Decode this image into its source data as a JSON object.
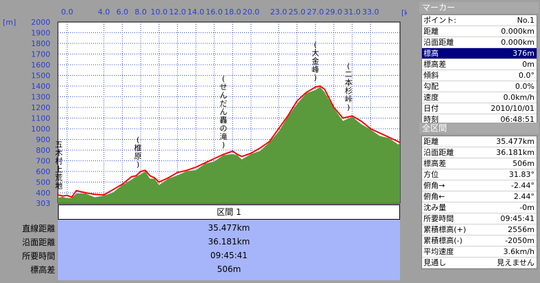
{
  "chart_data": {
    "type": "area",
    "x_unit": "[km]",
    "y_unit": "[m]",
    "xlim": [
      -1.0,
      36.2
    ],
    "ylim": [
      303,
      2000
    ],
    "x_ticks": [
      "0.0",
      "4.0",
      "6.0",
      "8.0",
      "10.0",
      "12.0",
      "14.0",
      "16.0",
      "18.0",
      "20.0",
      "23.0",
      "25.0",
      "27.0",
      "29.0",
      "31.0",
      "33.0"
    ],
    "x_tick_values": [
      0,
      4,
      6,
      8,
      10,
      12,
      14,
      16,
      18,
      20,
      23,
      25,
      27,
      29,
      31,
      33
    ],
    "y_ticks": [
      "2000",
      "1900",
      "1800",
      "1700",
      "1600",
      "1500",
      "1400",
      "1300",
      "1200",
      "1100",
      "1000",
      "900",
      "800",
      "700",
      "600",
      "500",
      "400",
      "303"
    ],
    "y_tick_values": [
      2000,
      1900,
      1800,
      1700,
      1600,
      1500,
      1400,
      1300,
      1200,
      1100,
      1000,
      900,
      800,
      700,
      600,
      500,
      400,
      303
    ],
    "grid": true,
    "series": [
      {
        "x": [
          -1.0,
          -0.5,
          0.0,
          0.5,
          1.0,
          2.0,
          3.0,
          4.0,
          5.0,
          6.0,
          7.0,
          7.5,
          8.0,
          8.5,
          9.0,
          9.5,
          10.0,
          11.0,
          12.0,
          13.0,
          14.0,
          15.0,
          16.0,
          17.0,
          18.0,
          18.5,
          19.0,
          20.0,
          21.0,
          22.0,
          23.0,
          24.0,
          25.0,
          26.0,
          27.0,
          27.5,
          28.0,
          29.0,
          30.0,
          31.0,
          32.0,
          33.0,
          34.0,
          35.0,
          36.0,
          36.2
        ],
        "y": [
          380,
          370,
          375,
          360,
          420,
          400,
          385,
          380,
          430,
          480,
          550,
          560,
          600,
          610,
          560,
          540,
          500,
          540,
          590,
          610,
          640,
          680,
          720,
          760,
          790,
          760,
          740,
          770,
          820,
          880,
          1000,
          1120,
          1260,
          1340,
          1390,
          1400,
          1370,
          1200,
          1100,
          1120,
          1070,
          1000,
          960,
          920,
          880,
          870
        ]
      }
    ],
    "annotations": [
      {
        "text": "五木村上荒地",
        "x": -0.9
      },
      {
        "text": "(椎原)",
        "x": 7.7
      },
      {
        "text": "(せんだん轟の滝)",
        "x": 17.0
      },
      {
        "text": "(大金峰)",
        "x": 27.0
      },
      {
        "text": "(二本杉峠)",
        "x": 30.6
      }
    ]
  },
  "section": {
    "title": "区間 1",
    "rows": [
      {
        "label": "直線距離",
        "value": "35.477km"
      },
      {
        "label": "沿面距離",
        "value": "36.181km"
      },
      {
        "label": "所要時間",
        "value": "09:45:41"
      },
      {
        "label": "標高差",
        "value": "506m"
      }
    ]
  },
  "marker": {
    "header": "マーカー",
    "rows": [
      {
        "key": "ポイント:",
        "value": "No.1"
      },
      {
        "key": "距離",
        "value": "0.000km"
      },
      {
        "key": "沿面距離",
        "value": "0.000km"
      },
      {
        "key": "標高",
        "value": "376m"
      },
      {
        "key": "標高差",
        "value": "0m"
      },
      {
        "key": "傾斜",
        "value": "0.0°"
      },
      {
        "key": "勾配",
        "value": "0.0%"
      },
      {
        "key": "速度",
        "value": "0.0km/h"
      },
      {
        "key": "日付",
        "value": "2010/10/01"
      },
      {
        "key": "時刻",
        "value": "06:48:51"
      }
    ]
  },
  "total": {
    "header": "全区間",
    "rows": [
      {
        "key": "距離",
        "value": "35.477km"
      },
      {
        "key": "沿面距離",
        "value": "36.181km"
      },
      {
        "key": "標高差",
        "value": "506m"
      },
      {
        "key": "方位",
        "value": "31.83°"
      },
      {
        "key": "俯角→",
        "value": "-2.44°"
      },
      {
        "key": "俯角←",
        "value": "2.44°"
      },
      {
        "key": "沈み量",
        "value": "-0m"
      },
      {
        "key": "所要時間",
        "value": "09:45:41"
      },
      {
        "key": "累積標高(+)",
        "value": "2556m"
      },
      {
        "key": "累積標高(-)",
        "value": "-2050m"
      },
      {
        "key": "平均速度",
        "value": "3.6km/h"
      },
      {
        "key": "見通し",
        "value": "見えません"
      }
    ]
  },
  "colors": {
    "background": "#a0a0a0",
    "plot_bg": "#ffffff",
    "grid": "#2a3fcf",
    "terrain": "#5a9a3c",
    "route": "#ff0000",
    "panel": "#a6b4fa",
    "selected": "#000080"
  }
}
